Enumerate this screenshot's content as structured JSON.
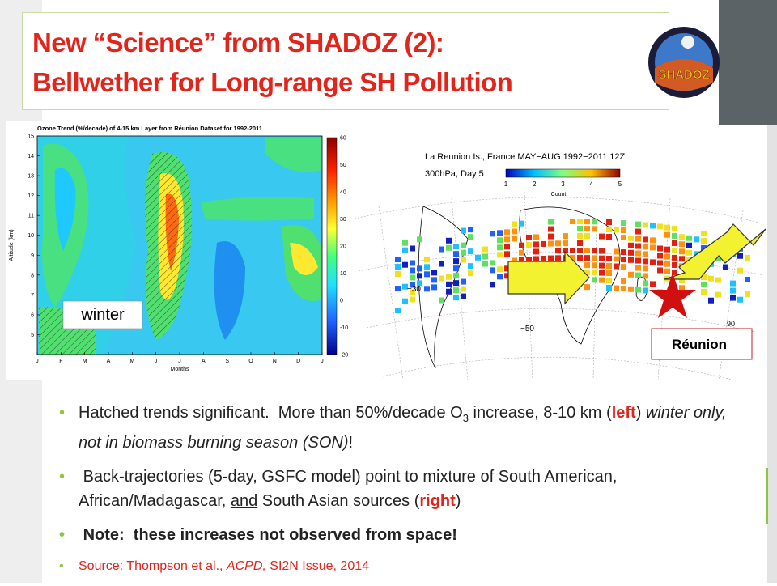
{
  "title": [
    "New “Science” from SHADOZ (2):",
    "Bellwether for Long-range SH Pollution"
  ],
  "logo": {
    "name": "SHADOZ"
  },
  "left_figure": {
    "title": "Ozone Trend (%/decade) of 4-15 km Layer from Réunion Dataset for 1992-2011",
    "y_label": "Altitude (km)",
    "x_label": "Months",
    "y_ticks": [
      5,
      6,
      7,
      8,
      9,
      10,
      11,
      12,
      13,
      14,
      15
    ],
    "months": [
      "J",
      "F",
      "M",
      "A",
      "M",
      "J",
      "J",
      "A",
      "S",
      "O",
      "N",
      "D",
      "J"
    ],
    "colorbar_ticks": [
      60,
      50,
      40,
      30,
      20,
      10,
      0,
      -10,
      -20
    ],
    "season_label": "winter"
  },
  "right_figure": {
    "title": "La Reunion Is., France MAY−AUG 1992−2011 12Z",
    "subtitle": "300hPa, Day 5",
    "colorbar_ticks": [
      1,
      2,
      3,
      4,
      5
    ],
    "colorbar_label": "Count",
    "lat_labels": [
      "−30",
      "−50"
    ],
    "lon_label": "90",
    "marker_label": "Réunion"
  },
  "bullets": [
    [
      "Hatched trends significant.  More than 50%/decade O",
      "3",
      " increase, 8-10 km (",
      "left",
      ") ",
      "winter only, not in biomass burning season (SON)",
      "!"
    ],
    [
      " Back-trajectories (5-day, GSFC model) point to mixture of South American, African/Madagascar, ",
      "and",
      " South Asian sources (",
      "right",
      ")"
    ],
    [
      " Note:  these increases not observed from space!"
    ],
    [
      "Source: Thompson et al., ",
      "ACPD,",
      " SI2N Issue, 2014"
    ]
  ]
}
